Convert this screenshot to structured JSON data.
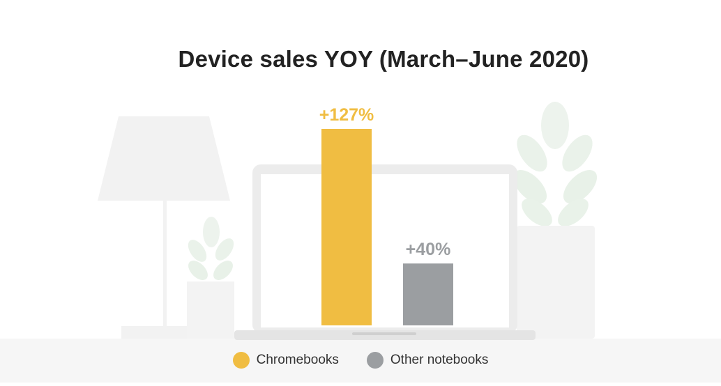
{
  "title": "Device sales YOY (March–June 2020)",
  "colors": {
    "chromebooks": "#f0bd42",
    "other": "#9b9ea1",
    "background_art": "#f3f3f3",
    "plant": "#eaf2ea",
    "floor": "#f5f5f5"
  },
  "legend": [
    {
      "label": "Chromebooks",
      "color": "#f0bd42"
    },
    {
      "label": "Other notebooks",
      "color": "#9b9ea1"
    }
  ],
  "chart_data": {
    "type": "bar",
    "title": "Device sales YOY (March–June 2020)",
    "categories": [
      "Chromebooks",
      "Other notebooks"
    ],
    "values": [
      127,
      40
    ],
    "value_labels": [
      "+127%",
      "+40%"
    ],
    "colors": [
      "#f0bd42",
      "#9b9ea1"
    ],
    "xlabel": "",
    "ylabel": "",
    "ylim": [
      0,
      127
    ],
    "grid": false,
    "legend_position": "bottom"
  }
}
